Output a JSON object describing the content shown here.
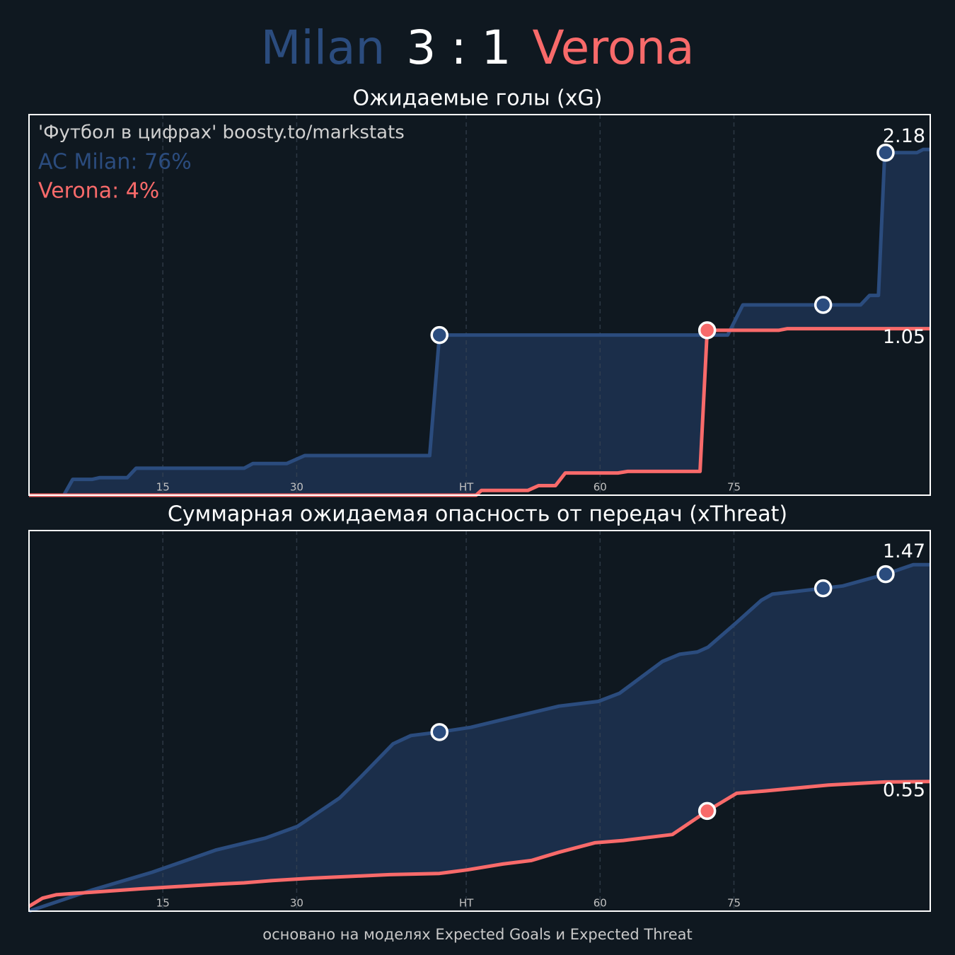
{
  "header": {
    "home": "Milan",
    "score": "3 : 1",
    "away": "Verona"
  },
  "footer": "основано на моделях Expected Goals и Expected Threat",
  "chart_data": [
    {
      "type": "line",
      "title": "Ожидаемые голы (xG)",
      "source": "'Футбол в цифрах' boosty.to/markstats",
      "probabilities": [
        "AC Milan: 76%",
        "Verona: 4%"
      ],
      "xlim": [
        0,
        101
      ],
      "xticks": [
        15,
        30,
        {
          "value": 49,
          "label": "HT"
        },
        {
          "value": 64,
          "label": "60"
        },
        {
          "value": 79,
          "label": "75"
        }
      ],
      "ylim": [
        0,
        2.4
      ],
      "grid": true,
      "series": [
        {
          "color": "#2b4c7e",
          "x": [
            0,
            3.9,
            4.9,
            7.1,
            7.9,
            11.0,
            12.0,
            24.1,
            25.1,
            28.9,
            30.9,
            44.9,
            46.0,
            78.3,
            80.0,
            93.2,
            94.2,
            95.2,
            95.9,
            99.5,
            100.2,
            101
          ],
          "values": [
            0,
            0,
            0.1,
            0.1,
            0.11,
            0.11,
            0.17,
            0.17,
            0.2,
            0.2,
            0.25,
            0.25,
            1.01,
            1.01,
            1.2,
            1.2,
            1.26,
            1.26,
            2.16,
            2.16,
            2.18,
            2.18
          ],
          "goals": [
            46,
            89,
            96
          ]
        },
        {
          "color": "#f86a6a",
          "x": [
            0,
            50.1,
            50.7,
            55.9,
            57.1,
            59.0,
            60.1,
            66.0,
            67.1,
            75.2,
            76.0,
            84.0,
            85.0,
            101
          ],
          "values": [
            0,
            0,
            0.03,
            0.03,
            0.06,
            0.06,
            0.14,
            0.14,
            0.15,
            0.15,
            1.04,
            1.04,
            1.05,
            1.05
          ],
          "goals": [
            76
          ]
        }
      ]
    },
    {
      "type": "line",
      "title": "Суммарная ожидаемая опасность от передач (xThreat)",
      "xlim": [
        0,
        101
      ],
      "xticks": [
        15,
        30,
        {
          "value": 49,
          "label": "HT"
        },
        {
          "value": 64,
          "label": "60"
        },
        {
          "value": 79,
          "label": "75"
        }
      ],
      "ylim": [
        0,
        1.615
      ],
      "grid": true,
      "series": [
        {
          "color": "#2b4c7e",
          "x": [
            0,
            7.1,
            13.8,
            21.0,
            26.5,
            30.1,
            34.8,
            37.2,
            40.8,
            42.8,
            46.0,
            49.5,
            53.9,
            59.4,
            63.8,
            66.2,
            71.0,
            72.9,
            74.9,
            76.1,
            79.3,
            82.1,
            83.3,
            89.0,
            91.2,
            96.0,
            99.1,
            101
          ],
          "values": [
            0,
            0.09,
            0.165,
            0.26,
            0.31,
            0.36,
            0.48,
            0.57,
            0.71,
            0.745,
            0.76,
            0.78,
            0.82,
            0.87,
            0.89,
            0.925,
            1.06,
            1.09,
            1.1,
            1.12,
            1.225,
            1.32,
            1.345,
            1.37,
            1.38,
            1.43,
            1.47,
            1.47
          ],
          "goals": [
            46,
            89,
            96
          ]
        },
        {
          "color": "#f86a6a",
          "x": [
            0,
            1.5,
            3.1,
            12.6,
            21.3,
            24.1,
            27.3,
            31.7,
            40.4,
            46.0,
            49.1,
            53.1,
            56.3,
            59.4,
            63.4,
            66.6,
            72.1,
            76.0,
            79.3,
            82.5,
            89.6,
            95.9,
            101
          ],
          "values": [
            0.02,
            0.055,
            0.07,
            0.095,
            0.115,
            0.12,
            0.13,
            0.14,
            0.155,
            0.16,
            0.175,
            0.2,
            0.215,
            0.25,
            0.29,
            0.3,
            0.325,
            0.425,
            0.5,
            0.51,
            0.535,
            0.548,
            0.55
          ],
          "goals": [
            76
          ]
        }
      ]
    }
  ]
}
